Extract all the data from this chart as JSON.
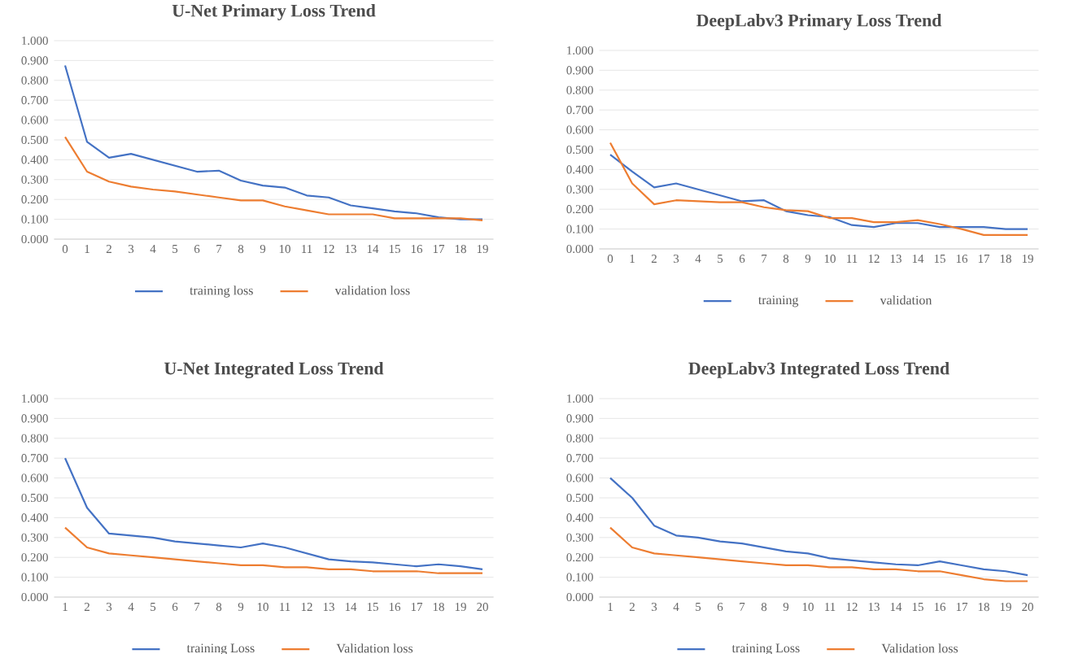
{
  "chart_data": [
    {
      "type": "line",
      "title": "U-Net Primary Loss Trend",
      "categories": [
        "0",
        "1",
        "2",
        "3",
        "4",
        "5",
        "6",
        "7",
        "8",
        "9",
        "10",
        "11",
        "12",
        "13",
        "14",
        "15",
        "16",
        "17",
        "18",
        "19"
      ],
      "series": [
        {
          "name": "training loss",
          "color": "#4472c4",
          "values": [
            0.875,
            0.49,
            0.41,
            0.43,
            0.4,
            0.37,
            0.34,
            0.345,
            0.295,
            0.27,
            0.26,
            0.22,
            0.21,
            0.17,
            0.155,
            0.14,
            0.13,
            0.11,
            0.1,
            0.1
          ]
        },
        {
          "name": "validation loss",
          "color": "#ed7d31",
          "values": [
            0.515,
            0.34,
            0.29,
            0.265,
            0.25,
            0.24,
            0.225,
            0.21,
            0.195,
            0.195,
            0.165,
            0.145,
            0.125,
            0.125,
            0.125,
            0.105,
            0.105,
            0.105,
            0.105,
            0.095
          ]
        }
      ],
      "ylim": [
        0,
        1
      ],
      "yticks": [
        {
          "value": 0,
          "label": "0.000"
        },
        {
          "value": 0.1,
          "label": "0.100"
        },
        {
          "value": 0.2,
          "label": "0.200"
        },
        {
          "value": 0.3,
          "label": "0.300"
        },
        {
          "value": 0.4,
          "label": "0.400"
        },
        {
          "value": 0.5,
          "label": "0.500"
        },
        {
          "value": 0.6,
          "label": "0.600"
        },
        {
          "value": 0.7,
          "label": "0.700"
        },
        {
          "value": 0.8,
          "label": "0.800"
        },
        {
          "value": 0.9,
          "label": "0.900"
        },
        {
          "value": 1,
          "label": "1.000"
        }
      ],
      "grid": "y",
      "legend": "bottom",
      "marker": "none",
      "line_style": "solid"
    },
    {
      "type": "line",
      "title": "DeepLabv3 Primary Loss Trend",
      "categories": [
        "0",
        "1",
        "2",
        "3",
        "4",
        "5",
        "6",
        "7",
        "8",
        "9",
        "10",
        "11",
        "12",
        "13",
        "14",
        "15",
        "16",
        "17",
        "18",
        "19"
      ],
      "series": [
        {
          "name": "training",
          "color": "#4472c4",
          "values": [
            0.475,
            0.39,
            0.31,
            0.33,
            0.3,
            0.27,
            0.24,
            0.245,
            0.19,
            0.17,
            0.16,
            0.12,
            0.11,
            0.13,
            0.13,
            0.11,
            0.11,
            0.11,
            0.1,
            0.1
          ]
        },
        {
          "name": "validation",
          "color": "#ed7d31",
          "values": [
            0.535,
            0.33,
            0.225,
            0.245,
            0.24,
            0.235,
            0.235,
            0.21,
            0.195,
            0.19,
            0.155,
            0.155,
            0.135,
            0.135,
            0.145,
            0.125,
            0.1,
            0.07,
            0.07,
            0.07
          ]
        }
      ],
      "ylim": [
        0,
        1
      ],
      "yticks": [
        {
          "value": 0,
          "label": "0.000"
        },
        {
          "value": 0.1,
          "label": "0.100"
        },
        {
          "value": 0.2,
          "label": "0.200"
        },
        {
          "value": 0.3,
          "label": "0.300"
        },
        {
          "value": 0.4,
          "label": "0.400"
        },
        {
          "value": 0.5,
          "label": "0.500"
        },
        {
          "value": 0.6,
          "label": "0.600"
        },
        {
          "value": 0.7,
          "label": "0.700"
        },
        {
          "value": 0.8,
          "label": "0.800"
        },
        {
          "value": 0.9,
          "label": "0.900"
        },
        {
          "value": 1,
          "label": "1.000"
        }
      ],
      "grid": "y",
      "legend": "bottom",
      "marker": "none",
      "line_style": "solid"
    },
    {
      "type": "line",
      "title": "U-Net Integrated Loss Trend",
      "categories": [
        "1",
        "2",
        "3",
        "4",
        "5",
        "6",
        "7",
        "8",
        "9",
        "10",
        "11",
        "12",
        "13",
        "14",
        "15",
        "16",
        "17",
        "18",
        "19",
        "20"
      ],
      "series": [
        {
          "name": "training Loss",
          "color": "#4472c4",
          "values": [
            0.7,
            0.45,
            0.32,
            0.31,
            0.3,
            0.28,
            0.27,
            0.26,
            0.25,
            0.27,
            0.25,
            0.22,
            0.19,
            0.18,
            0.175,
            0.165,
            0.155,
            0.165,
            0.155,
            0.14
          ]
        },
        {
          "name": "Validation loss",
          "color": "#ed7d31",
          "values": [
            0.35,
            0.25,
            0.22,
            0.21,
            0.2,
            0.19,
            0.18,
            0.17,
            0.16,
            0.16,
            0.15,
            0.15,
            0.14,
            0.14,
            0.13,
            0.13,
            0.13,
            0.12,
            0.12,
            0.12
          ]
        }
      ],
      "ylim": [
        0,
        1
      ],
      "yticks": [
        {
          "value": 0,
          "label": "0.000"
        },
        {
          "value": 0.1,
          "label": "0.100"
        },
        {
          "value": 0.2,
          "label": "0.200"
        },
        {
          "value": 0.3,
          "label": "0.300"
        },
        {
          "value": 0.4,
          "label": "0.400"
        },
        {
          "value": 0.5,
          "label": "0.500"
        },
        {
          "value": 0.6,
          "label": "0.600"
        },
        {
          "value": 0.7,
          "label": "0.700"
        },
        {
          "value": 0.8,
          "label": "0.800"
        },
        {
          "value": 0.9,
          "label": "0.900"
        },
        {
          "value": 1,
          "label": "1.000"
        }
      ],
      "grid": "y",
      "legend": "bottom",
      "marker": "none",
      "line_style": "solid"
    },
    {
      "type": "line",
      "title": "DeepLabv3 Integrated Loss Trend",
      "categories": [
        "1",
        "2",
        "3",
        "4",
        "5",
        "6",
        "7",
        "8",
        "9",
        "10",
        "11",
        "12",
        "13",
        "14",
        "15",
        "16",
        "17",
        "18",
        "19",
        "20"
      ],
      "series": [
        {
          "name": "training Loss",
          "color": "#4472c4",
          "values": [
            0.6,
            0.5,
            0.36,
            0.31,
            0.3,
            0.28,
            0.27,
            0.25,
            0.23,
            0.22,
            0.195,
            0.185,
            0.175,
            0.165,
            0.16,
            0.18,
            0.16,
            0.14,
            0.13,
            0.11
          ]
        },
        {
          "name": "Validation loss",
          "color": "#ed7d31",
          "values": [
            0.35,
            0.25,
            0.22,
            0.21,
            0.2,
            0.19,
            0.18,
            0.17,
            0.16,
            0.16,
            0.15,
            0.15,
            0.14,
            0.14,
            0.13,
            0.13,
            0.11,
            0.09,
            0.08,
            0.08
          ]
        }
      ],
      "ylim": [
        0,
        1
      ],
      "yticks": [
        {
          "value": 0,
          "label": "0.000"
        },
        {
          "value": 0.1,
          "label": "0.100"
        },
        {
          "value": 0.2,
          "label": "0.200"
        },
        {
          "value": 0.3,
          "label": "0.300"
        },
        {
          "value": 0.4,
          "label": "0.400"
        },
        {
          "value": 0.5,
          "label": "0.500"
        },
        {
          "value": 0.6,
          "label": "0.600"
        },
        {
          "value": 0.7,
          "label": "0.700"
        },
        {
          "value": 0.8,
          "label": "0.800"
        },
        {
          "value": 0.9,
          "label": "0.900"
        },
        {
          "value": 1,
          "label": "1.000"
        }
      ],
      "grid": "y",
      "legend": "bottom",
      "marker": "none",
      "line_style": "solid"
    }
  ]
}
